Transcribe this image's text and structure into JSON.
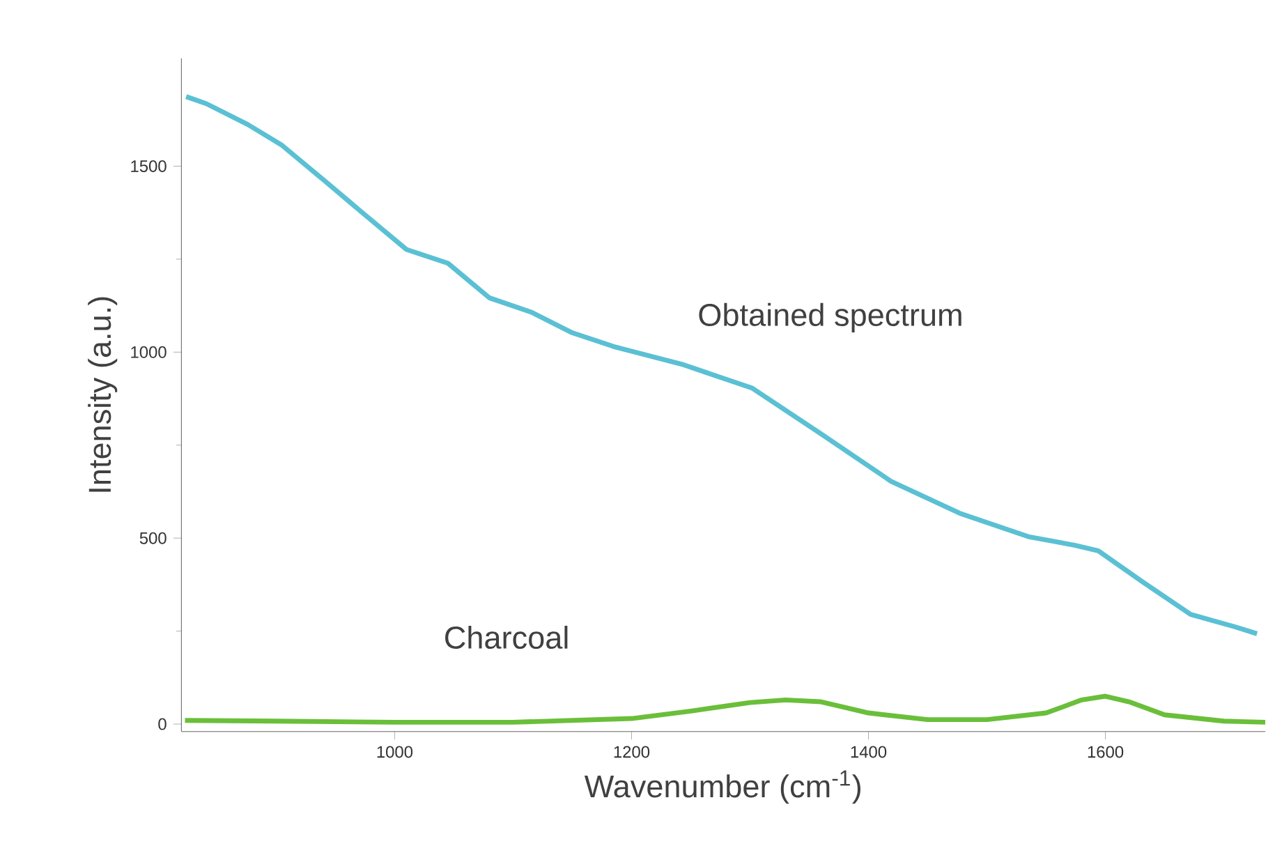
{
  "chart_data": {
    "type": "line",
    "xlabel": "Wavenumber (cm$^{-1}$)",
    "ylabel": "Intensity (a.u.)",
    "xlim": [
      820,
      1735
    ],
    "ylim": [
      -20,
      1790
    ],
    "xticks": [
      1000,
      1200,
      1400,
      1600
    ],
    "yticks": [
      0,
      500,
      1000,
      1500
    ],
    "grid": false,
    "legend": false,
    "marker": "none",
    "line_style": "solid",
    "series": [
      {
        "name": "Obtained spectrum",
        "color": "#5bc0d4",
        "x": [
          824,
          841,
          876,
          905,
          940,
          975,
          1010,
          1045,
          1080,
          1115,
          1150,
          1185,
          1244,
          1302,
          1360,
          1419,
          1477,
          1535,
          1574,
          1594,
          1632,
          1672,
          1710,
          1728
        ],
        "values": [
          1687,
          1668,
          1612,
          1556,
          1463,
          1369,
          1276,
          1239,
          1146,
          1108,
          1052,
          1015,
          966,
          903,
          780,
          653,
          567,
          504,
          481,
          466,
          381,
          295,
          261,
          243
        ]
      },
      {
        "name": "Charcoal",
        "color": "#6abf3a",
        "x": [
          823,
          900,
          1000,
          1100,
          1200,
          1250,
          1300,
          1330,
          1360,
          1400,
          1450,
          1500,
          1550,
          1580,
          1600,
          1620,
          1650,
          1700,
          1735
        ],
        "values": [
          10,
          8,
          5,
          5,
          15,
          35,
          58,
          65,
          60,
          30,
          12,
          12,
          30,
          65,
          75,
          60,
          25,
          8,
          5
        ]
      }
    ]
  }
}
